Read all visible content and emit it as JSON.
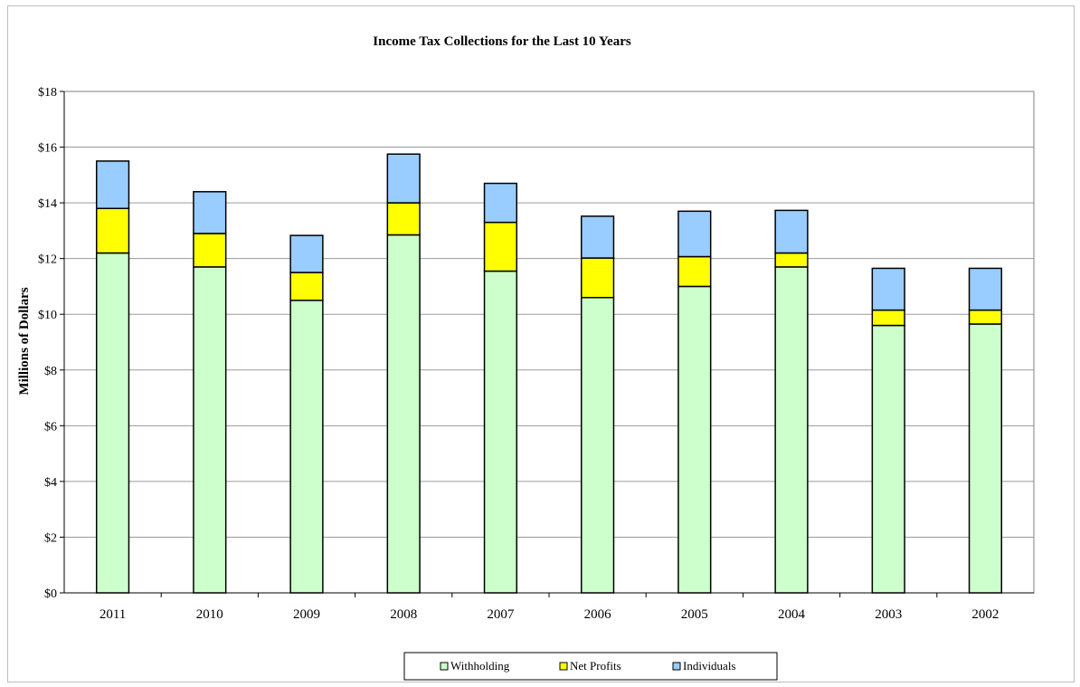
{
  "chart_data": {
    "type": "bar",
    "stacked": true,
    "title": "Income Tax Collections for the Last 10 Years",
    "xlabel": "",
    "ylabel": "Millions of Dollars",
    "ylim": [
      0,
      18
    ],
    "y_ticks": [
      0,
      2,
      4,
      6,
      8,
      10,
      12,
      14,
      16,
      18
    ],
    "y_tick_labels": [
      "$0",
      "$2",
      "$4",
      "$6",
      "$8",
      "$10",
      "$12",
      "$14",
      "$16",
      "$18"
    ],
    "grid": true,
    "legend_position": "bottom",
    "categories": [
      "2011",
      "2010",
      "2009",
      "2008",
      "2007",
      "2006",
      "2005",
      "2004",
      "2003",
      "2002"
    ],
    "series": [
      {
        "name": "Withholding",
        "color": "#ccffcc",
        "values": [
          12.2,
          11.7,
          10.5,
          12.85,
          11.55,
          10.6,
          11.0,
          11.7,
          9.6,
          9.65
        ]
      },
      {
        "name": "Net Profits",
        "color": "#ffff00",
        "values": [
          1.6,
          1.2,
          1.0,
          1.15,
          1.75,
          1.42,
          1.07,
          0.5,
          0.55,
          0.5
        ]
      },
      {
        "name": "Individuals",
        "color": "#99ccff",
        "values": [
          1.7,
          1.5,
          1.33,
          1.75,
          1.4,
          1.5,
          1.63,
          1.53,
          1.5,
          1.5
        ]
      }
    ]
  }
}
